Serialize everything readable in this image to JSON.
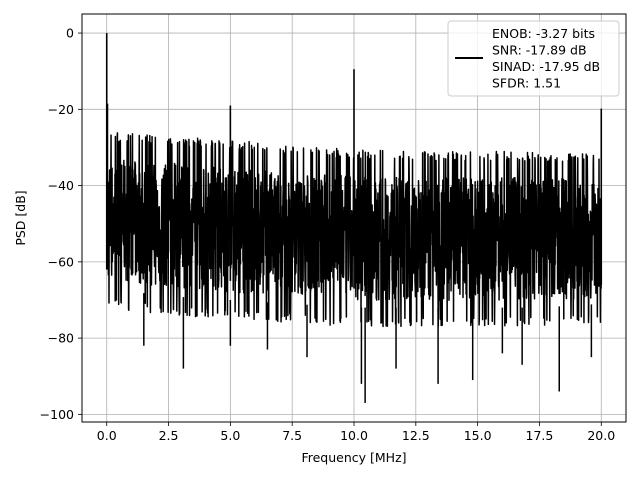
{
  "chart_data": {
    "type": "line",
    "title": "",
    "xlabel": "Frequency [MHz]",
    "ylabel": "PSD [dB]",
    "xlim": [
      -1.0,
      21.0
    ],
    "ylim": [
      -102.0,
      5.0
    ],
    "xticks": [
      0.0,
      2.5,
      5.0,
      7.5,
      10.0,
      12.5,
      15.0,
      17.5,
      20.0
    ],
    "xtick_labels": [
      "0.0",
      "2.5",
      "5.0",
      "7.5",
      "10.0",
      "12.5",
      "15.0",
      "17.5",
      "20.0"
    ],
    "yticks": [
      0,
      -20,
      -40,
      -60,
      -80,
      -100
    ],
    "ytick_labels": [
      "0",
      "−20",
      "−40",
      "−60",
      "−80",
      "−100"
    ],
    "grid": true,
    "legend_placement": "upper-right",
    "series": [
      {
        "name": "ENOB: -3.27 bits\nSNR: -17.89 dB\nSINAD: -17.95 dB\nSFDR: 1.51",
        "color": "#000000",
        "x_range": [
          0.0,
          20.0
        ],
        "spikes": [
          {
            "x": 0.0,
            "y": 0.0
          },
          {
            "x": 0.03,
            "y": -18.5
          },
          {
            "x": 5.0,
            "y": -19.0
          },
          {
            "x": 10.0,
            "y": -9.5
          },
          {
            "x": 20.0,
            "y": -19.8
          }
        ],
        "noise_upper_envelope": [
          [
            0.0,
            -26
          ],
          [
            2.5,
            -27
          ],
          [
            5.0,
            -28
          ],
          [
            7.5,
            -29.5
          ],
          [
            10.0,
            -30.5
          ],
          [
            12.5,
            -31
          ],
          [
            15.0,
            -31
          ],
          [
            17.5,
            -31
          ],
          [
            20.0,
            -32
          ]
        ],
        "noise_lower_envelope": [
          [
            0.0,
            -72
          ],
          [
            2.5,
            -74
          ],
          [
            5.0,
            -75
          ],
          [
            7.5,
            -76
          ],
          [
            10.0,
            -77
          ],
          [
            12.5,
            -77
          ],
          [
            15.0,
            -77
          ],
          [
            17.5,
            -77
          ],
          [
            20.0,
            -76
          ]
        ],
        "deep_dips": [
          {
            "x": 1.5,
            "y": -82
          },
          {
            "x": 3.1,
            "y": -88
          },
          {
            "x": 5.0,
            "y": -82
          },
          {
            "x": 6.5,
            "y": -83
          },
          {
            "x": 8.1,
            "y": -85
          },
          {
            "x": 10.3,
            "y": -92
          },
          {
            "x": 10.45,
            "y": -97
          },
          {
            "x": 11.7,
            "y": -88
          },
          {
            "x": 13.4,
            "y": -92
          },
          {
            "x": 14.8,
            "y": -91
          },
          {
            "x": 16.0,
            "y": -84
          },
          {
            "x": 16.8,
            "y": -87
          },
          {
            "x": 18.3,
            "y": -94
          },
          {
            "x": 19.6,
            "y": -85
          }
        ]
      }
    ]
  }
}
